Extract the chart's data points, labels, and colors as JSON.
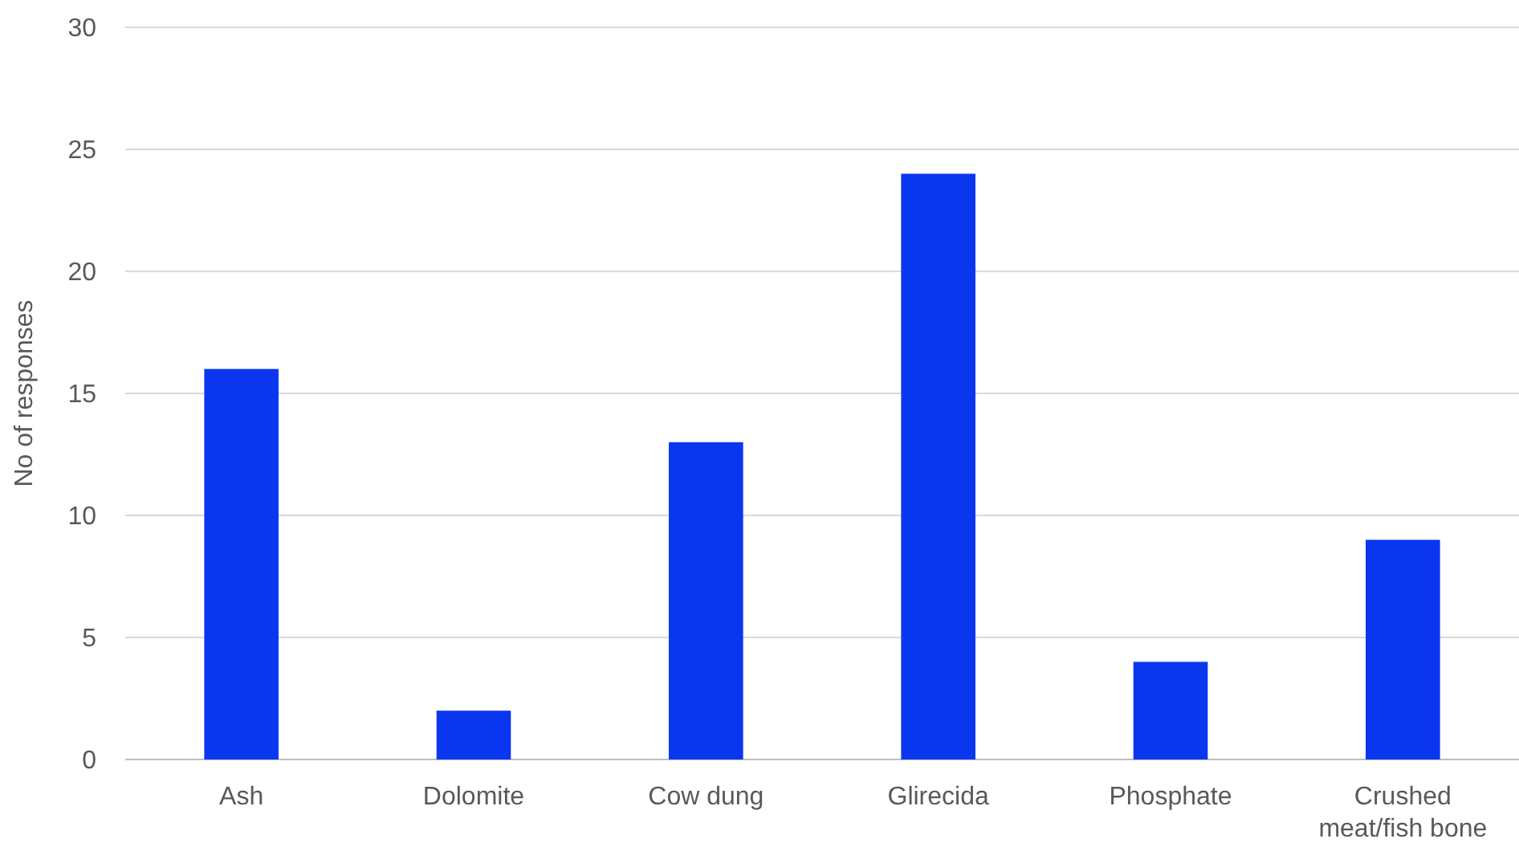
{
  "chart_data": {
    "type": "bar",
    "ylabel": "No of responses",
    "categories": [
      "Ash",
      "Dolomite",
      "Cow dung",
      "Glirecida",
      "Phosphate",
      "Crushed meat/fish bone"
    ],
    "values": [
      16,
      2,
      13,
      24,
      4,
      9
    ],
    "color": "#0a36f0",
    "ylim": [
      0,
      30
    ],
    "yticks": [
      0,
      5,
      10,
      15,
      20,
      25,
      30
    ],
    "grid": "y"
  }
}
